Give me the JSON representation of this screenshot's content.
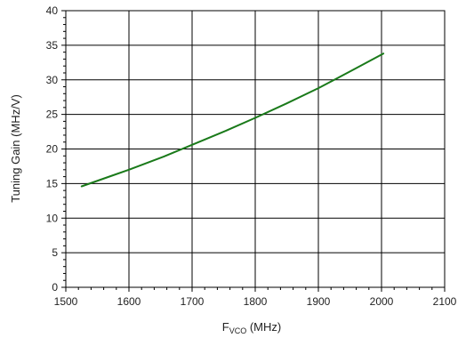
{
  "chart_data": {
    "type": "line",
    "xlabel_main": "F",
    "xlabel_sub": "VCO",
    "xlabel_unit": " (MHz)",
    "ylabel": "Tuning Gain (MHz/V)",
    "xlim": [
      1500,
      2100
    ],
    "ylim": [
      0,
      40
    ],
    "xticks": [
      "1500",
      "1600",
      "1700",
      "1800",
      "1900",
      "2000",
      "2100"
    ],
    "yticks": [
      "0",
      "5",
      "10",
      "15",
      "20",
      "25",
      "30",
      "35",
      "40"
    ],
    "grid": true,
    "line_color": "#1a7a1a",
    "series": [
      {
        "x": [
          1525,
          1575,
          1600,
          1655,
          1700,
          1750,
          1800,
          1850,
          1900,
          1950,
          2003
        ],
        "y": [
          14.6,
          16.2,
          17.0,
          18.9,
          20.6,
          22.5,
          24.5,
          26.6,
          28.8,
          31.2,
          33.8
        ]
      }
    ]
  }
}
